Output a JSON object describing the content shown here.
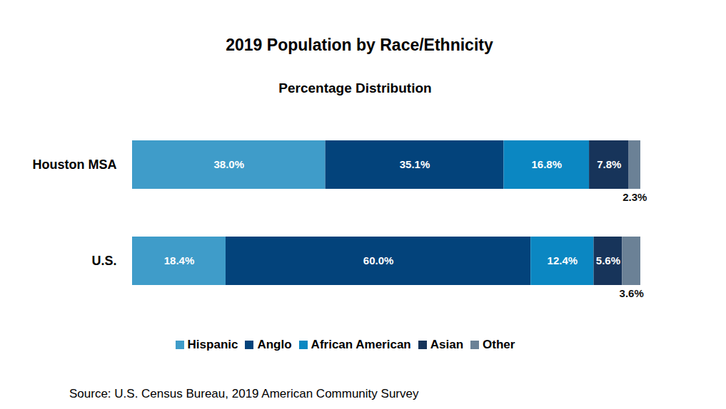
{
  "chart_data": {
    "type": "bar",
    "title": "2019 Population by Race/Ethnicity",
    "subtitle": "Percentage Distribution",
    "source": "Source: U.S. Census Bureau, 2019 American Community Survey",
    "orientation": "horizontal",
    "stacked": true,
    "data_labels": true,
    "legend": "bottom",
    "tick_labels": "y",
    "categories": [
      "Houston MSA",
      "U.S."
    ],
    "xlim": [
      0,
      100
    ],
    "series": [
      {
        "name": "Hispanic",
        "color": "#3f9cc9",
        "values": [
          38.0,
          18.4
        ],
        "value_labels": [
          "38.0%",
          "18.4%"
        ]
      },
      {
        "name": "Anglo",
        "color": "#03437b",
        "values": [
          35.1,
          60.0
        ],
        "value_labels": [
          "35.1%",
          "60.0%"
        ]
      },
      {
        "name": "African American",
        "color": "#0b87c2",
        "values": [
          16.8,
          12.4
        ],
        "value_labels": [
          "16.8%",
          "12.4%"
        ]
      },
      {
        "name": "Asian",
        "color": "#17345a",
        "values": [
          7.8,
          5.6
        ],
        "value_labels": [
          "7.8%",
          "5.6%"
        ]
      },
      {
        "name": "Other",
        "color": "#6b8196",
        "values": [
          2.3,
          3.6
        ],
        "value_labels": [
          "2.3%",
          "3.6%"
        ]
      }
    ]
  }
}
